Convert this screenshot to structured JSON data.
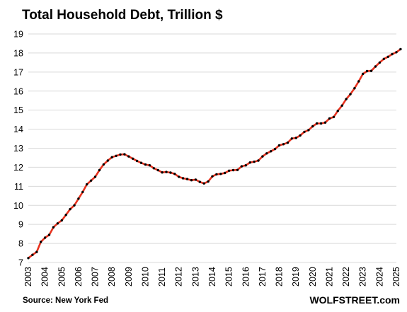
{
  "chart_data": {
    "type": "line",
    "title": "Total Household Debt, Trillion $",
    "source": "Source: New York Fed",
    "brand": "WOLFSTREET.com",
    "ylim": [
      7,
      19
    ],
    "yticks": [
      7,
      8,
      9,
      10,
      11,
      12,
      13,
      14,
      15,
      16,
      17,
      18,
      19
    ],
    "xlim": [
      2003,
      2025
    ],
    "xticks": [
      "2003",
      "2004",
      "2005",
      "2006",
      "2007",
      "2008",
      "2009",
      "2010",
      "2011",
      "2012",
      "2013",
      "2014",
      "2015",
      "2016",
      "2017",
      "2018",
      "2019",
      "2020",
      "2021",
      "2022",
      "2023",
      "2024",
      "2025"
    ],
    "grid": "horizontal",
    "line_color": "#e8321e",
    "marker_color": "#000000",
    "series": [
      {
        "x_start": 2003.0,
        "x_step": 0.25,
        "values": [
          7.23,
          7.4,
          7.55,
          8.08,
          8.3,
          8.45,
          8.85,
          9.05,
          9.21,
          9.5,
          9.8,
          10.0,
          10.35,
          10.7,
          11.1,
          11.3,
          11.5,
          11.85,
          12.15,
          12.35,
          12.53,
          12.6,
          12.67,
          12.68,
          12.57,
          12.45,
          12.33,
          12.23,
          12.14,
          12.1,
          11.95,
          11.85,
          11.73,
          11.75,
          11.72,
          11.65,
          11.5,
          11.42,
          11.38,
          11.32,
          11.35,
          11.23,
          11.15,
          11.25,
          11.52,
          11.63,
          11.65,
          11.7,
          11.82,
          11.85,
          11.86,
          12.05,
          12.1,
          12.25,
          12.29,
          12.35,
          12.57,
          12.73,
          12.84,
          12.96,
          13.15,
          13.21,
          13.29,
          13.51,
          13.54,
          13.67,
          13.86,
          13.95,
          14.15,
          14.3,
          14.3,
          14.35,
          14.56,
          14.64,
          14.96,
          15.24,
          15.58,
          15.84,
          16.15,
          16.51,
          16.9,
          17.05,
          17.06,
          17.29,
          17.5,
          17.69,
          17.8,
          17.94,
          18.04,
          18.2
        ]
      }
    ]
  }
}
